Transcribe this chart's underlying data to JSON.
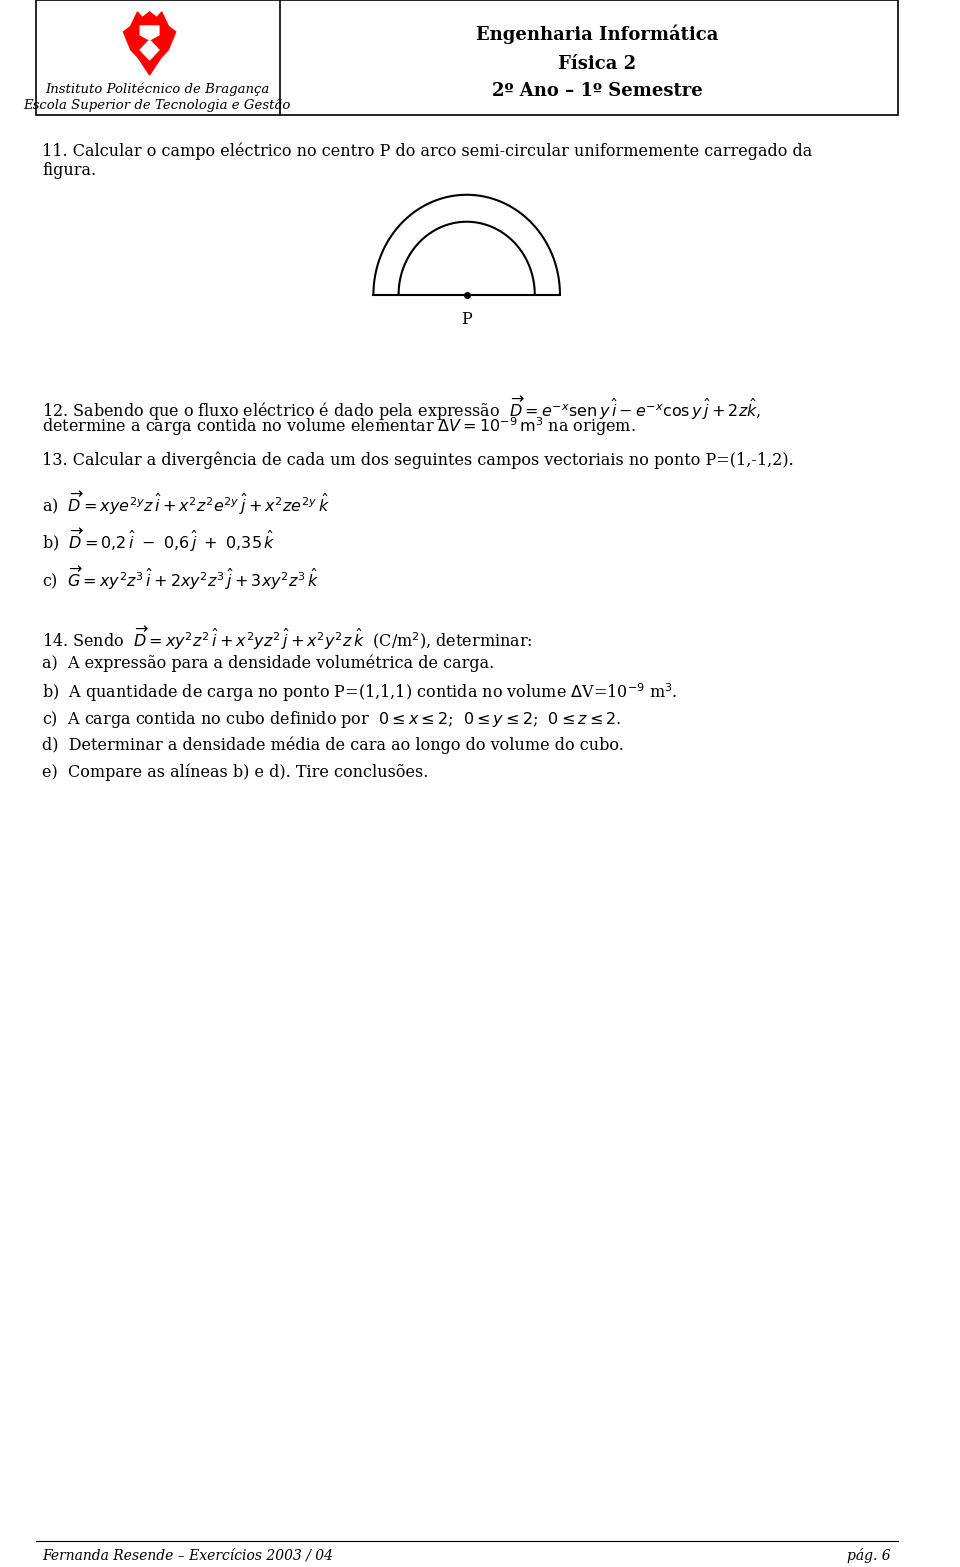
{
  "title_right_line1": "Engenharia Informática",
  "title_right_line2": "Física 2",
  "title_right_line3": "2º Ano – 1º Semestre",
  "inst_line1": "Instituto Politécnico de Bragança",
  "inst_line2": "Escola Superior de Tecnologia e Gestão",
  "footer": "Fernanda Resende – Exercícios 2003 / 04",
  "footer_right": "pág. 6",
  "bg": "#ffffff",
  "text_color": "#000000",
  "body_fontsize": 11.5,
  "header_fontsize": 13
}
